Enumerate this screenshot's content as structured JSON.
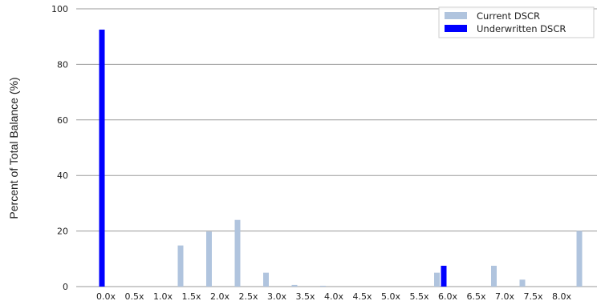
{
  "chart_data": {
    "type": "bar",
    "ylabel": "Percent of Total Balance (%)",
    "ylim": [
      0,
      100
    ],
    "yticks": [
      0,
      20,
      40,
      60,
      80,
      100
    ],
    "grid": "horizontal",
    "legend_position": "top-right",
    "categories": [
      "0.0x",
      "0.5x",
      "1.0x",
      "1.5x",
      "2.0x",
      "2.5x",
      "3.0x",
      "3.5x",
      "4.0x",
      "4.5x",
      "5.0x",
      "5.5x",
      "6.0x",
      "6.5x",
      "7.0x",
      "7.5x",
      "8.0x"
    ],
    "bins": [
      "0.0x to 0.5x",
      "0.5x to 1.0x",
      "1.0x to 1.5x",
      "1.5x to 2.0x",
      "2.0x to 2.5x",
      "2.5x to 3.0x",
      "3.0x to 3.5x",
      "3.5x to 4.0x",
      "4.0x to 4.5x",
      "4.5x to 5.0x",
      "5.0x to 5.5x",
      "5.5x to 6.0x",
      "6.0x to 6.5x",
      "6.5x to 7.0x",
      "7.0x to 7.5x",
      "7.5x to 8.0x",
      "8.0x"
    ],
    "series": [
      {
        "name": "Current DSCR",
        "color": "#b0c4de",
        "values": [
          0,
          0,
          14.8,
          19.8,
          24.0,
          5.0,
          0.6,
          0.3,
          0,
          0,
          0,
          5.0,
          0,
          7.5,
          2.5,
          0,
          20.0
        ]
      },
      {
        "name": "Underwritten DSCR",
        "color": "#0000ff",
        "values": [
          92.5,
          0,
          0,
          0,
          0,
          0,
          0,
          0,
          0,
          0,
          0,
          0,
          7.5,
          0,
          0,
          0,
          0
        ]
      }
    ]
  }
}
